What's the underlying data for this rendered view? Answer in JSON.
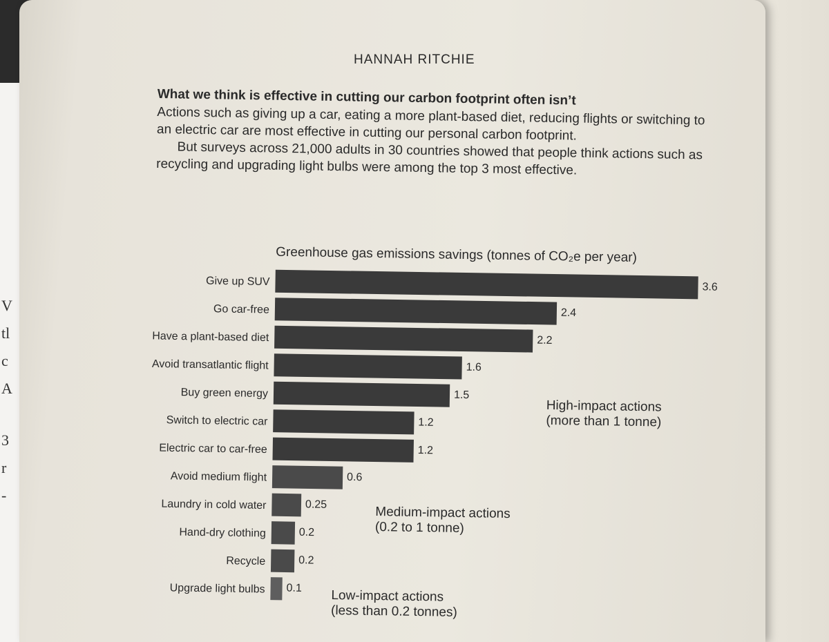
{
  "header": {
    "running_head": "HANNAH RITCHIE"
  },
  "text": {
    "title": "What we think is effective in cutting our carbon footprint often isn’t",
    "paragraph1": "Actions such as giving up a car, eating a more plant-based diet, reducing flights or switching to an electric car are most effective in cutting our personal carbon footprint.",
    "paragraph2": "But surveys across 21,000 adults in 30 countries showed that people think actions such as recycling and upgrading light bulbs were among the top 3 most effective."
  },
  "left_page_fragments": [
    "V",
    "tl",
    "c",
    "A",
    "3",
    "r",
    "-"
  ],
  "colors": {
    "dark_bar": "#3a3a3a",
    "medium_bar": "#4a4a4a",
    "light_bar": "#5e5e5e"
  },
  "chart_data": {
    "type": "bar",
    "orientation": "horizontal",
    "title": "Greenhouse gas emissions savings (tonnes of CO₂e per year)",
    "categories": [
      "Give up SUV",
      "Go car-free",
      "Have a plant-based diet",
      "Avoid transatlantic flight",
      "Buy green energy",
      "Switch to electric car",
      "Electric car to car-free",
      "Avoid medium flight",
      "Laundry in cold water",
      "Hand-dry clothing",
      "Recycle",
      "Upgrade light bulbs"
    ],
    "values": [
      3.6,
      2.4,
      2.2,
      1.6,
      1.5,
      1.2,
      1.2,
      0.6,
      0.25,
      0.2,
      0.2,
      0.1
    ],
    "value_labels": [
      "3.6",
      "2.4",
      "2.2",
      "1.6",
      "1.5",
      "1.2",
      "1.2",
      "0.6",
      "0.25",
      "0.2",
      "0.2",
      "0.1"
    ],
    "groups": [
      {
        "label": "High-impact actions",
        "sublabel": "(more than 1 tonne)",
        "color": "dark_bar",
        "start": 0,
        "end": 6
      },
      {
        "label": "Medium-impact actions",
        "sublabel": "(0.2 to 1 tonne)",
        "color": "medium_bar",
        "start": 7,
        "end": 10
      },
      {
        "label": "Low-impact actions",
        "sublabel": "(less than 0.2 tonnes)",
        "color": "light_bar",
        "start": 11,
        "end": 11
      }
    ],
    "xlim": [
      0,
      3.6
    ],
    "grid": false
  }
}
